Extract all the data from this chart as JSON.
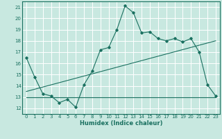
{
  "xlabel": "Humidex (Indice chaleur)",
  "bg_color": "#c8e8e0",
  "grid_color": "#ffffff",
  "line_color": "#1a7060",
  "xlim": [
    -0.5,
    23.5
  ],
  "ylim": [
    11.5,
    21.5
  ],
  "yticks": [
    12,
    13,
    14,
    15,
    16,
    17,
    18,
    19,
    20,
    21
  ],
  "xticks": [
    0,
    1,
    2,
    3,
    4,
    5,
    6,
    7,
    8,
    9,
    10,
    11,
    12,
    13,
    14,
    15,
    16,
    17,
    18,
    19,
    20,
    21,
    22,
    23
  ],
  "curve_x": [
    0,
    1,
    2,
    3,
    4,
    5,
    6,
    7,
    8,
    9,
    10,
    11,
    12,
    13,
    14,
    15,
    16,
    17,
    18,
    19,
    20,
    21,
    22,
    23
  ],
  "curve_y": [
    16.5,
    14.8,
    13.3,
    13.1,
    12.5,
    12.8,
    12.1,
    14.1,
    15.3,
    17.2,
    17.4,
    19.0,
    21.1,
    20.5,
    18.7,
    18.8,
    18.2,
    18.0,
    18.2,
    17.9,
    18.2,
    17.0,
    14.1,
    13.1
  ],
  "trend_x": [
    0,
    23
  ],
  "trend_y": [
    13.5,
    18.0
  ],
  "hline_x": [
    0,
    23
  ],
  "hline_y": [
    13.0,
    13.0
  ]
}
